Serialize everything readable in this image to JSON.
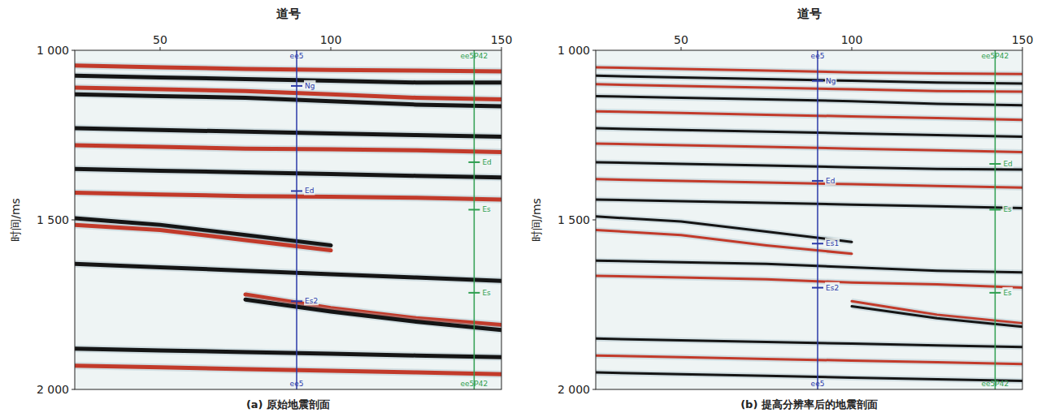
{
  "chart_data": [
    {
      "type": "seismic",
      "title": "(a) 原始地震剖面",
      "x_label": "道号",
      "y_label": "时间/ms",
      "xlim": [
        25,
        150
      ],
      "xticks": [
        50,
        100,
        150
      ],
      "ylim": [
        1000,
        2000
      ],
      "yticks": [
        {
          "value": 1000,
          "label": "1 000"
        },
        {
          "value": 1500,
          "label": "1 500"
        },
        {
          "value": 2000,
          "label": "2 000"
        }
      ],
      "series": [
        {
          "color": "#c23a2a",
          "x": [
            25,
            50,
            75,
            100,
            125,
            150
          ],
          "values": [
            1045,
            1050,
            1055,
            1058,
            1060,
            1062
          ]
        },
        {
          "color": "#151515",
          "x": [
            25,
            50,
            75,
            100,
            125,
            150
          ],
          "values": [
            1075,
            1080,
            1085,
            1090,
            1095,
            1095
          ]
        },
        {
          "color": "#c23a2a",
          "x": [
            25,
            50,
            75,
            100,
            125,
            150
          ],
          "values": [
            1110,
            1115,
            1120,
            1130,
            1140,
            1145
          ]
        },
        {
          "color": "#151515",
          "x": [
            25,
            50,
            75,
            100,
            125,
            150
          ],
          "values": [
            1130,
            1135,
            1140,
            1150,
            1160,
            1165
          ]
        },
        {
          "color": "#151515",
          "x": [
            25,
            50,
            75,
            100,
            125,
            150
          ],
          "values": [
            1230,
            1235,
            1240,
            1245,
            1250,
            1255
          ]
        },
        {
          "color": "#c23a2a",
          "x": [
            25,
            50,
            75,
            100,
            125,
            150
          ],
          "values": [
            1280,
            1285,
            1290,
            1292,
            1295,
            1300
          ]
        },
        {
          "color": "#151515",
          "x": [
            25,
            50,
            75,
            100,
            125,
            150
          ],
          "values": [
            1350,
            1355,
            1360,
            1365,
            1370,
            1375
          ]
        },
        {
          "color": "#c23a2a",
          "x": [
            25,
            50,
            75,
            100,
            125,
            150
          ],
          "values": [
            1420,
            1425,
            1430,
            1432,
            1435,
            1440
          ]
        },
        {
          "color": "#151515",
          "x": [
            25,
            50,
            75,
            100,
            125,
            150
          ],
          "values": [
            1495,
            1515,
            1545,
            1575,
            null,
            null
          ]
        },
        {
          "color": "#c23a2a",
          "x": [
            25,
            50,
            75,
            100,
            125,
            150
          ],
          "values": [
            1515,
            1530,
            1560,
            1590,
            null,
            null
          ]
        },
        {
          "color": "#151515",
          "x": [
            25,
            50,
            75,
            100,
            125,
            150
          ],
          "values": [
            1630,
            1640,
            1650,
            1660,
            1670,
            1680
          ]
        },
        {
          "color": "#c23a2a",
          "x": [
            25,
            50,
            75,
            100,
            125,
            150
          ],
          "values": [
            null,
            null,
            1720,
            1760,
            1790,
            1810
          ]
        },
        {
          "color": "#151515",
          "x": [
            25,
            50,
            75,
            100,
            125,
            150
          ],
          "values": [
            null,
            null,
            1735,
            1770,
            1800,
            1825
          ]
        },
        {
          "color": "#151515",
          "x": [
            25,
            50,
            75,
            100,
            125,
            150
          ],
          "values": [
            1880,
            1885,
            1890,
            1895,
            1900,
            1905
          ]
        },
        {
          "color": "#c23a2a",
          "x": [
            25,
            50,
            75,
            100,
            125,
            150
          ],
          "values": [
            1930,
            1935,
            1940,
            1945,
            1950,
            1955
          ]
        }
      ],
      "wells": [
        {
          "trace": 90,
          "color": "#2b3aa8",
          "label_top": "ee5",
          "label_bottom": "ee5",
          "tops": [
            {
              "name": "Ng",
              "time": 1105
            },
            {
              "name": "Ed",
              "time": 1415
            },
            {
              "name": "Es2",
              "time": 1740
            }
          ]
        },
        {
          "trace": 142,
          "color": "#2e9e4f",
          "label_top": "ee5P42",
          "label_bottom": "ee5P42",
          "tops": [
            {
              "name": "Ed",
              "time": 1330
            },
            {
              "name": "Es",
              "time": 1470
            },
            {
              "name": "Es",
              "time": 1715
            }
          ]
        }
      ]
    },
    {
      "type": "seismic",
      "title": "(b) 提高分辨率后的地震剖面",
      "x_label": "道号",
      "y_label": "时间/ms",
      "xlim": [
        25,
        150
      ],
      "xticks": [
        50,
        100,
        150
      ],
      "ylim": [
        1000,
        2000
      ],
      "yticks": [
        {
          "value": 1000,
          "label": "1 000"
        },
        {
          "value": 1500,
          "label": "1 500"
        },
        {
          "value": 2000,
          "label": "2 000"
        }
      ],
      "series": [
        {
          "color": "#c23a2a",
          "x": [
            25,
            50,
            75,
            100,
            125,
            150
          ],
          "values": [
            1050,
            1055,
            1060,
            1065,
            1068,
            1070
          ]
        },
        {
          "color": "#151515",
          "x": [
            25,
            50,
            75,
            100,
            125,
            150
          ],
          "values": [
            1075,
            1080,
            1085,
            1090,
            1095,
            1098
          ]
        },
        {
          "color": "#c23a2a",
          "x": [
            25,
            50,
            75,
            100,
            125,
            150
          ],
          "values": [
            1100,
            1105,
            1110,
            1115,
            1120,
            1122
          ]
        },
        {
          "color": "#151515",
          "x": [
            25,
            50,
            75,
            100,
            125,
            150
          ],
          "values": [
            1135,
            1140,
            1145,
            1150,
            1158,
            1162
          ]
        },
        {
          "color": "#c23a2a",
          "x": [
            25,
            50,
            75,
            100,
            125,
            150
          ],
          "values": [
            1180,
            1185,
            1190,
            1195,
            1200,
            1205
          ]
        },
        {
          "color": "#151515",
          "x": [
            25,
            50,
            75,
            100,
            125,
            150
          ],
          "values": [
            1230,
            1235,
            1240,
            1245,
            1250,
            1255
          ]
        },
        {
          "color": "#c23a2a",
          "x": [
            25,
            50,
            75,
            100,
            125,
            150
          ],
          "values": [
            1275,
            1280,
            1285,
            1290,
            1295,
            1300
          ]
        },
        {
          "color": "#151515",
          "x": [
            25,
            50,
            75,
            100,
            125,
            150
          ],
          "values": [
            1330,
            1335,
            1340,
            1345,
            1350,
            1352
          ]
        },
        {
          "color": "#c23a2a",
          "x": [
            25,
            50,
            75,
            100,
            125,
            150
          ],
          "values": [
            1380,
            1385,
            1390,
            1395,
            1400,
            1405
          ]
        },
        {
          "color": "#151515",
          "x": [
            25,
            50,
            75,
            100,
            125,
            150
          ],
          "values": [
            1440,
            1445,
            1450,
            1455,
            1460,
            1465
          ]
        },
        {
          "color": "#151515",
          "x": [
            25,
            50,
            75,
            100,
            125,
            150
          ],
          "values": [
            1490,
            1505,
            1535,
            1565,
            null,
            null
          ]
        },
        {
          "color": "#c23a2a",
          "x": [
            25,
            50,
            75,
            100,
            125,
            150
          ],
          "values": [
            1530,
            1545,
            1575,
            1600,
            null,
            null
          ]
        },
        {
          "color": "#151515",
          "x": [
            25,
            50,
            75,
            100,
            125,
            150
          ],
          "values": [
            1620,
            1625,
            1630,
            1640,
            1650,
            1655
          ]
        },
        {
          "color": "#c23a2a",
          "x": [
            25,
            50,
            75,
            100,
            125,
            150
          ],
          "values": [
            1665,
            1670,
            1675,
            1685,
            1690,
            1700
          ]
        },
        {
          "color": "#c23a2a",
          "x": [
            25,
            50,
            75,
            100,
            125,
            150
          ],
          "values": [
            null,
            null,
            null,
            1740,
            1780,
            1805
          ]
        },
        {
          "color": "#151515",
          "x": [
            25,
            50,
            75,
            100,
            125,
            150
          ],
          "values": [
            null,
            null,
            null,
            1755,
            1790,
            1815
          ]
        },
        {
          "color": "#151515",
          "x": [
            25,
            50,
            75,
            100,
            125,
            150
          ],
          "values": [
            1850,
            1855,
            1860,
            1865,
            1870,
            1875
          ]
        },
        {
          "color": "#c23a2a",
          "x": [
            25,
            50,
            75,
            100,
            125,
            150
          ],
          "values": [
            1900,
            1905,
            1910,
            1915,
            1920,
            1925
          ]
        },
        {
          "color": "#151515",
          "x": [
            25,
            50,
            75,
            100,
            125,
            150
          ],
          "values": [
            1950,
            1955,
            1960,
            1965,
            1970,
            1975
          ]
        }
      ],
      "wells": [
        {
          "trace": 90,
          "color": "#2b3aa8",
          "label_top": "ee5",
          "label_bottom": "ee5",
          "tops": [
            {
              "name": "Ng",
              "time": 1090
            },
            {
              "name": "Ed",
              "time": 1385
            },
            {
              "name": "Es1",
              "time": 1570
            },
            {
              "name": "Es2",
              "time": 1700
            }
          ]
        },
        {
          "trace": 142,
          "color": "#2e9e4f",
          "label_top": "ee5P42",
          "label_bottom": "ee5P42",
          "tops": [
            {
              "name": "Ed",
              "time": 1335
            },
            {
              "name": "Es",
              "time": 1470
            },
            {
              "name": "Es",
              "time": 1715
            }
          ]
        }
      ]
    }
  ]
}
